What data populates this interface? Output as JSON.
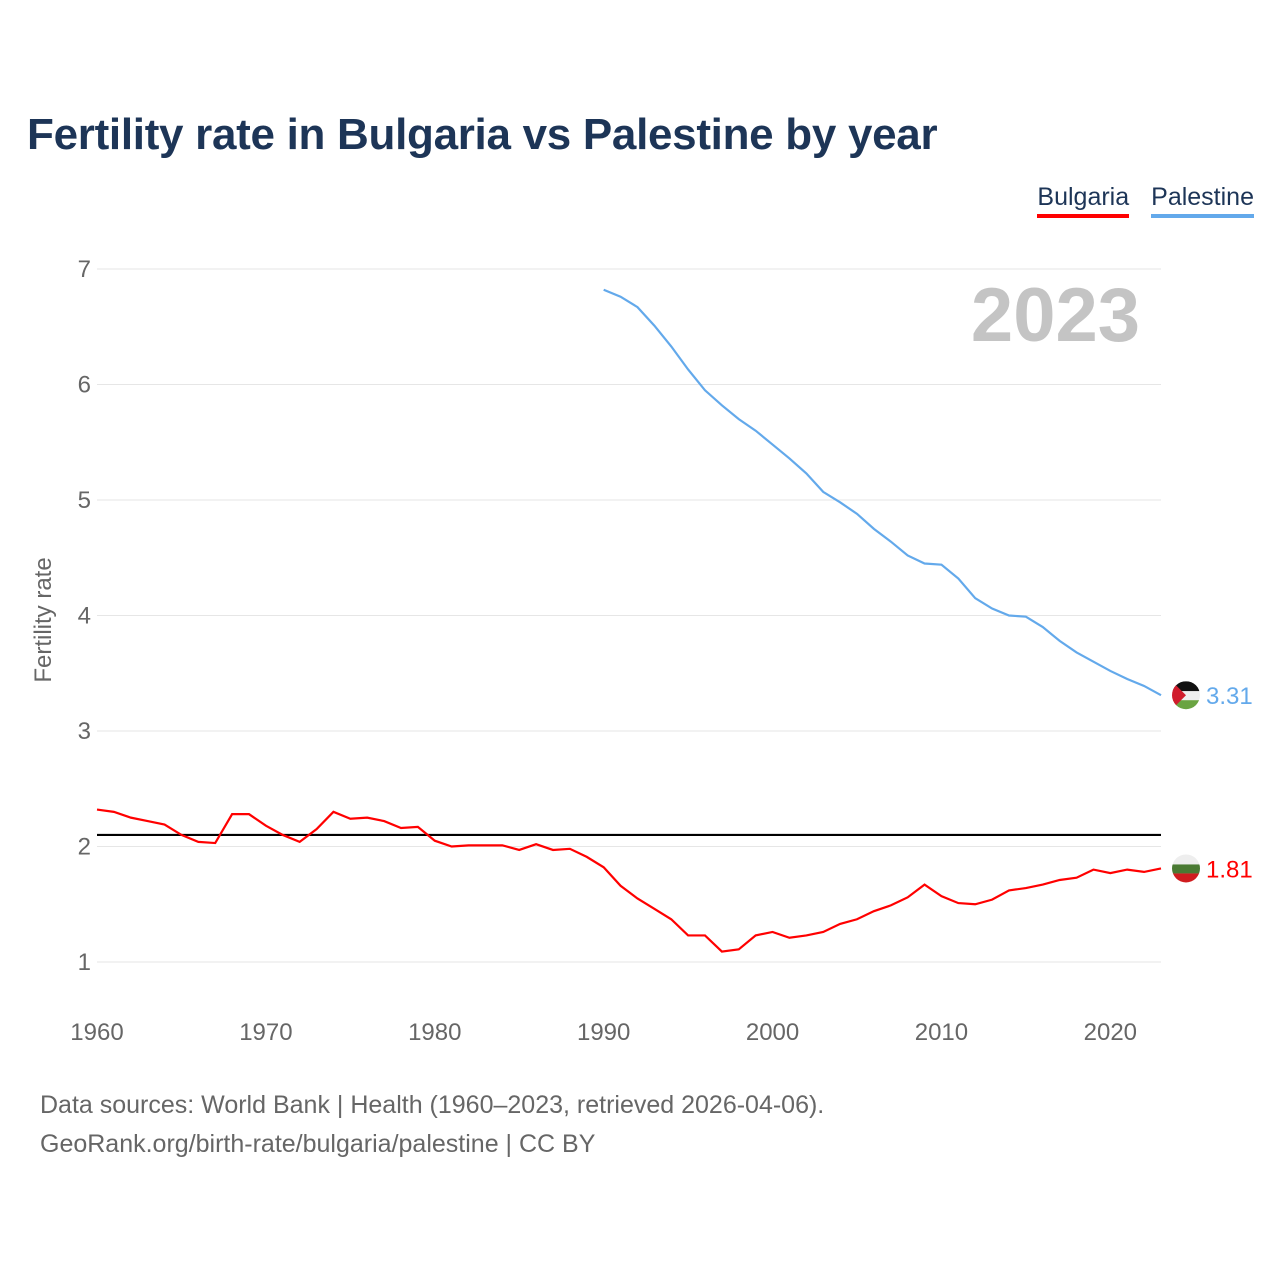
{
  "title": "Fertility rate in Bulgaria vs Palestine by year",
  "footer": {
    "line1": "Data sources: World Bank | Health (1960–2023, retrieved 2026-04-06).",
    "line2": "GeoRank.org/birth-rate/bulgaria/palestine | CC BY"
  },
  "chart_data": {
    "type": "line",
    "title": "Fertility rate in Bulgaria vs Palestine by year",
    "xlabel": "",
    "ylabel": "Fertility rate",
    "xlim": [
      1960,
      2023
    ],
    "ylim": [
      1,
      7
    ],
    "x_ticks": [
      "1960",
      "1970",
      "1980",
      "1990",
      "2000",
      "2010",
      "2020"
    ],
    "y_ticks": [
      "1",
      "2",
      "3",
      "4",
      "5",
      "6",
      "7"
    ],
    "year_label": "2023",
    "reference_line": 2.1,
    "legend_position": "top-right",
    "series": [
      {
        "name": "Bulgaria",
        "color": "#ff0000",
        "start": 1960,
        "end_label": "1.81",
        "values": [
          2.32,
          2.3,
          2.25,
          2.22,
          2.19,
          2.1,
          2.04,
          2.03,
          2.28,
          2.28,
          2.18,
          2.1,
          2.04,
          2.15,
          2.3,
          2.24,
          2.25,
          2.22,
          2.16,
          2.17,
          2.05,
          2.0,
          2.01,
          2.01,
          2.01,
          1.97,
          2.02,
          1.97,
          1.98,
          1.91,
          1.82,
          1.66,
          1.55,
          1.46,
          1.37,
          1.23,
          1.23,
          1.09,
          1.11,
          1.23,
          1.26,
          1.21,
          1.23,
          1.26,
          1.33,
          1.37,
          1.44,
          1.49,
          1.56,
          1.67,
          1.57,
          1.51,
          1.5,
          1.54,
          1.62,
          1.64,
          1.67,
          1.71,
          1.73,
          1.8,
          1.77,
          1.8,
          1.78,
          1.81
        ]
      },
      {
        "name": "Palestine",
        "color": "#63a9eb",
        "start": 1990,
        "end_label": "3.31",
        "values": [
          6.82,
          6.76,
          6.67,
          6.51,
          6.33,
          6.13,
          5.95,
          5.82,
          5.7,
          5.6,
          5.48,
          5.36,
          5.23,
          5.07,
          4.98,
          4.88,
          4.75,
          4.64,
          4.52,
          4.45,
          4.44,
          4.32,
          4.15,
          4.06,
          4.0,
          3.99,
          3.9,
          3.78,
          3.68,
          3.6,
          3.52,
          3.45,
          3.39,
          3.31
        ]
      }
    ]
  }
}
